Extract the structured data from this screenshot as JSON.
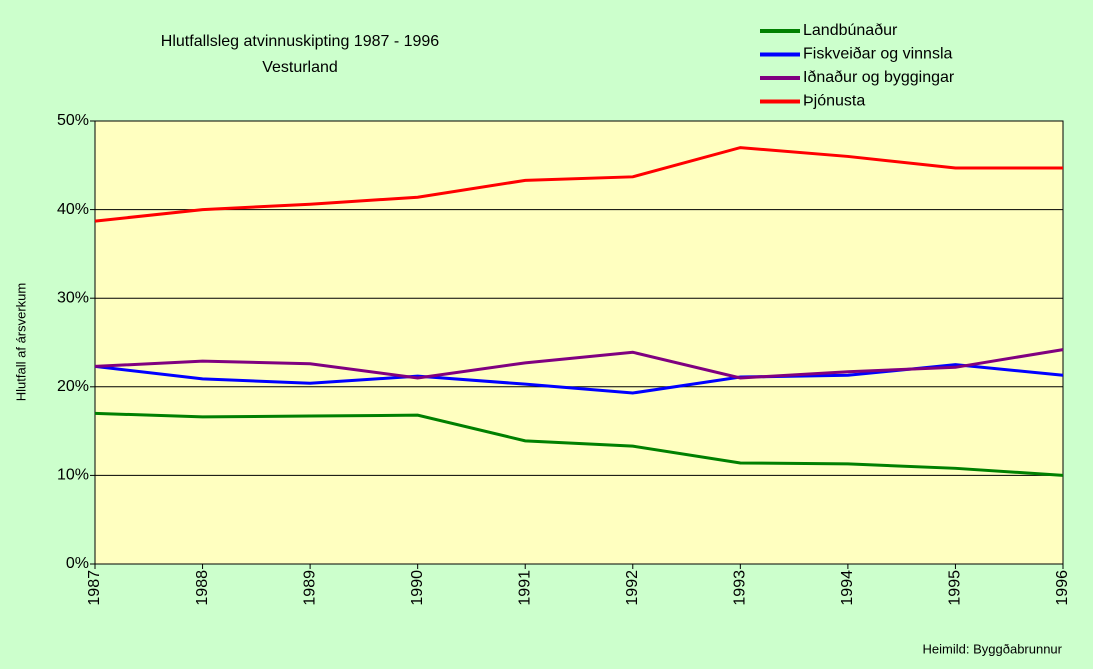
{
  "chart_data": {
    "type": "line",
    "title": "Hlutfallsleg atvinnuskipting 1987 - 1996",
    "subtitle": "Vesturland",
    "y_label": "Hlutfall af ársverkum",
    "source": "Heimild: Byggðabrunnur",
    "categories": [
      "1987",
      "1988",
      "1989",
      "1990",
      "1991",
      "1992",
      "1993",
      "1994",
      "1995",
      "1996"
    ],
    "series": [
      {
        "name": "Landbúnaður",
        "color": "#008000",
        "values": [
          17.0,
          16.6,
          16.7,
          16.8,
          13.9,
          13.3,
          11.4,
          11.3,
          10.8,
          10.0
        ]
      },
      {
        "name": "Fiskveiðar og vinnsla",
        "color": "#0000ff",
        "values": [
          22.3,
          20.9,
          20.4,
          21.2,
          20.3,
          19.3,
          21.1,
          21.3,
          22.5,
          21.3
        ]
      },
      {
        "name": "Iðnaður og byggingar",
        "color": "#800080",
        "values": [
          22.3,
          22.9,
          22.6,
          21.0,
          22.7,
          23.9,
          21.0,
          21.7,
          22.2,
          24.2
        ]
      },
      {
        "name": "Þjónusta",
        "color": "#ff0000",
        "values": [
          38.7,
          40.0,
          40.6,
          41.4,
          43.3,
          43.7,
          47.0,
          46.0,
          44.7,
          44.7
        ]
      }
    ],
    "ylim": [
      0,
      50
    ],
    "yticks": [
      {
        "value": 0,
        "label": "0%"
      },
      {
        "value": 10,
        "label": "10%"
      },
      {
        "value": 20,
        "label": "20%"
      },
      {
        "value": 30,
        "label": "30%"
      },
      {
        "value": 40,
        "label": "40%"
      },
      {
        "value": 50,
        "label": "50%"
      }
    ],
    "grid": true,
    "legend": "top-right"
  }
}
